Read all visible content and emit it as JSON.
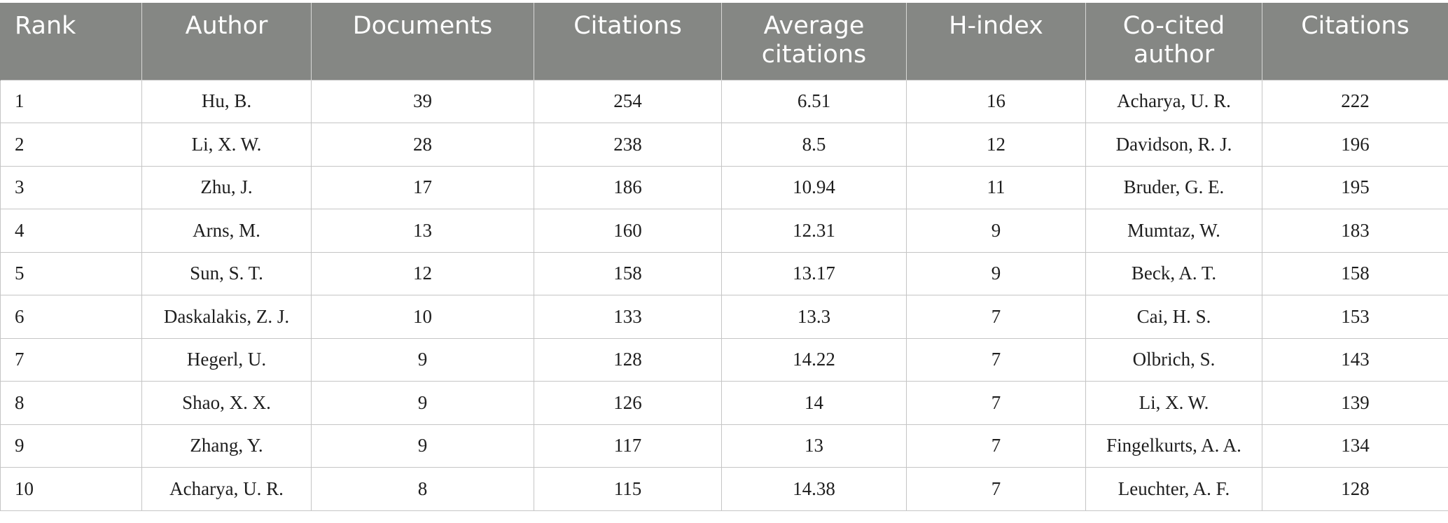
{
  "table": {
    "headers": [
      "Rank",
      "Author",
      "Documents",
      "Citations",
      "Average\ncitations",
      "H-index",
      "Co-cited\nauthor",
      "Citations"
    ],
    "rows": [
      [
        "1",
        "Hu, B.",
        "39",
        "254",
        "6.51",
        "16",
        "Acharya, U. R.",
        "222"
      ],
      [
        "2",
        "Li, X. W.",
        "28",
        "238",
        "8.5",
        "12",
        "Davidson, R. J.",
        "196"
      ],
      [
        "3",
        "Zhu, J.",
        "17",
        "186",
        "10.94",
        "11",
        "Bruder, G. E.",
        "195"
      ],
      [
        "4",
        "Arns, M.",
        "13",
        "160",
        "12.31",
        "9",
        "Mumtaz, W.",
        "183"
      ],
      [
        "5",
        "Sun, S. T.",
        "12",
        "158",
        "13.17",
        "9",
        "Beck, A. T.",
        "158"
      ],
      [
        "6",
        "Daskalakis, Z. J.",
        "10",
        "133",
        "13.3",
        "7",
        "Cai, H. S.",
        "153"
      ],
      [
        "7",
        "Hegerl, U.",
        "9",
        "128",
        "14.22",
        "7",
        "Olbrich, S.",
        "143"
      ],
      [
        "8",
        "Shao, X. X.",
        "9",
        "126",
        "14",
        "7",
        "Li, X. W.",
        "139"
      ],
      [
        "9",
        "Zhang, Y.",
        "9",
        "117",
        "13",
        "7",
        "Fingelkurts, A. A.",
        "134"
      ],
      [
        "10",
        "Acharya, U. R.",
        "8",
        "115",
        "14.38",
        "7",
        "Leuchter, A. F.",
        "128"
      ]
    ]
  },
  "colors": {
    "header_bg": "#858784",
    "header_text": "#ffffff",
    "grid_line": "#c5c5c5",
    "body_text": "#1e1e1e"
  }
}
